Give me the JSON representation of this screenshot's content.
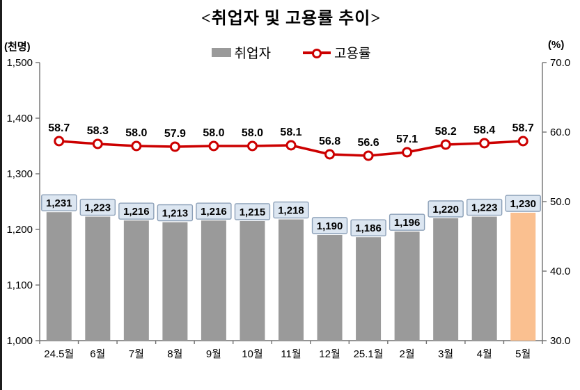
{
  "title": "<취업자 및 고용률 추이>",
  "left_axis_unit": "(천명)",
  "right_axis_unit": "(%)",
  "legend": {
    "employed_label": "취업자",
    "rate_label": "고용률"
  },
  "colors": {
    "bar": "#9A9A9A",
    "bar_highlight": "#FAC090",
    "line": "#CC0000",
    "label_box_fill": "#DCE6F1",
    "label_box_border": "#8CA0B8",
    "axis": "#707070",
    "text": "#000000"
  },
  "chart_data": {
    "type": "bar",
    "subtype": "bar-and-line-combo",
    "title": "<취업자 및 고용률 추이>",
    "categories": [
      "24.5월",
      "6월",
      "7월",
      "8월",
      "9월",
      "10월",
      "11월",
      "12월",
      "25.1월",
      "2월",
      "3월",
      "4월",
      "5월"
    ],
    "series": [
      {
        "name": "취업자",
        "type": "bar",
        "axis": "left",
        "values": [
          1231,
          1223,
          1216,
          1213,
          1216,
          1215,
          1218,
          1190,
          1186,
          1196,
          1220,
          1223,
          1230
        ],
        "value_labels": [
          "1,231",
          "1,223",
          "1,216",
          "1,213",
          "1,216",
          "1,215",
          "1,218",
          "1,190",
          "1,186",
          "1,196",
          "1,220",
          "1,223",
          "1,230"
        ]
      },
      {
        "name": "고용률",
        "type": "line",
        "axis": "right",
        "values": [
          58.7,
          58.3,
          58.0,
          57.9,
          58.0,
          58.0,
          58.1,
          56.8,
          56.6,
          57.1,
          58.2,
          58.4,
          58.7
        ],
        "value_labels": [
          "58.7",
          "58.3",
          "58.0",
          "57.9",
          "58.0",
          "58.0",
          "58.1",
          "56.8",
          "56.6",
          "57.1",
          "58.2",
          "58.4",
          "58.7"
        ]
      }
    ],
    "left_axis": {
      "label": "(천명)",
      "min": 1000,
      "max": 1500,
      "step": 100,
      "tick_labels": [
        "1,000",
        "1,100",
        "1,200",
        "1,300",
        "1,400",
        "1,500"
      ]
    },
    "right_axis": {
      "label": "(%)",
      "min": 30,
      "max": 70,
      "step": 10,
      "tick_labels": [
        "30.0",
        "40.0",
        "50.0",
        "60.0",
        "70.0"
      ]
    },
    "grid": false,
    "legend_position": "top-center",
    "highlight_last_bar": true
  }
}
